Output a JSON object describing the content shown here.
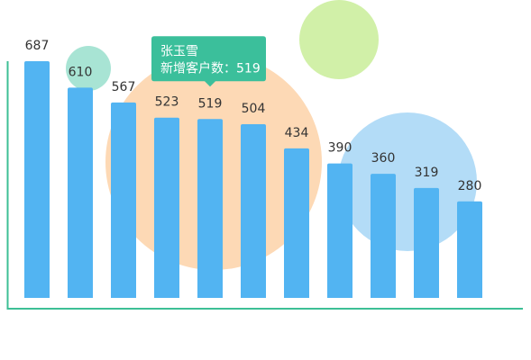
{
  "chart_data": {
    "type": "bar",
    "categories": [
      null,
      null,
      null,
      null,
      "张玉雪",
      null,
      null,
      null,
      null,
      null,
      null
    ],
    "values": [
      687,
      610,
      567,
      523,
      519,
      504,
      434,
      390,
      360,
      319,
      280
    ],
    "color": "#52b4f2",
    "ylim": [
      0,
      760
    ],
    "tooltip": {
      "index": 4,
      "label": "新增客户数："
    }
  }
}
